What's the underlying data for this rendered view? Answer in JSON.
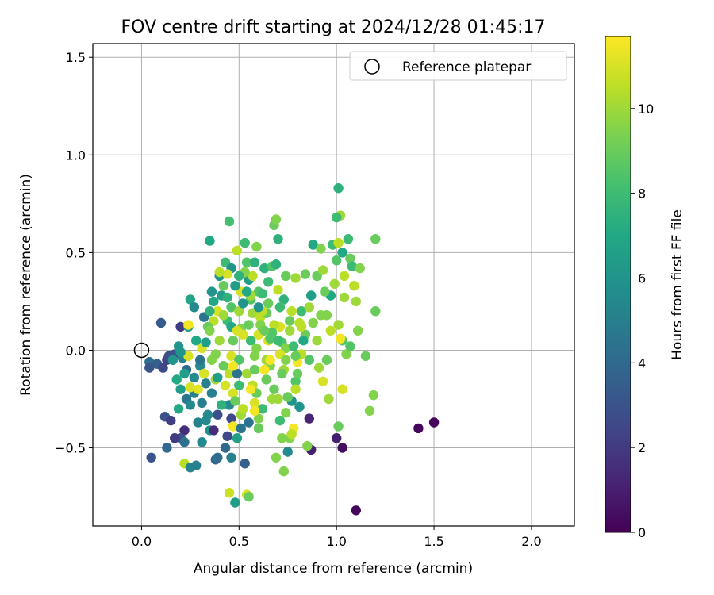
{
  "chart_data": {
    "type": "scatter",
    "title": "FOV centre drift starting at 2024/12/28 01:45:17",
    "xlabel": "Angular distance from reference (arcmin)",
    "ylabel": "Rotation from reference (arcmin)",
    "xlim": [
      -0.25,
      2.22
    ],
    "ylim": [
      -0.9,
      1.57
    ],
    "xticks": [
      0.0,
      0.5,
      1.0,
      1.5,
      2.0
    ],
    "xtick_labels": [
      "0.0",
      "0.5",
      "1.0",
      "1.5",
      "2.0"
    ],
    "yticks": [
      -0.5,
      0.0,
      0.5,
      1.0,
      1.5
    ],
    "ytick_labels": [
      "−0.5",
      "0.0",
      "0.5",
      "1.0",
      "1.5"
    ],
    "grid": true,
    "legend": {
      "position": "top-right",
      "entries": [
        {
          "label": "Reference platepar",
          "marker": "open-circle"
        }
      ]
    },
    "reference_point": {
      "x": 0.0,
      "y": 0.0
    },
    "colorbar": {
      "label": "Hours from first FF file",
      "colormap": "viridis",
      "range": [
        0,
        11.7
      ],
      "ticks": [
        0,
        2,
        4,
        6,
        8,
        10
      ],
      "tick_labels": [
        "0",
        "2",
        "4",
        "6",
        "8",
        "10"
      ]
    },
    "points": [
      [
        0.04,
        -0.06,
        4.2
      ],
      [
        0.08,
        -0.07,
        3.5
      ],
      [
        0.11,
        -0.09,
        2.5
      ],
      [
        0.13,
        -0.05,
        2.3
      ],
      [
        0.1,
        0.14,
        3.3
      ],
      [
        0.14,
        -0.03,
        2.8
      ],
      [
        0.17,
        -0.02,
        3.0
      ],
      [
        0.04,
        -0.09,
        3.1
      ],
      [
        0.19,
        0.02,
        6.0
      ],
      [
        0.21,
        -0.04,
        5.2
      ],
      [
        0.2,
        0.12,
        2.0
      ],
      [
        0.23,
        -0.1,
        4.0
      ],
      [
        0.2,
        -0.2,
        6.5
      ],
      [
        0.23,
        -0.25,
        4.5
      ],
      [
        0.19,
        -0.3,
        7.0
      ],
      [
        0.22,
        -0.41,
        1.5
      ],
      [
        0.2,
        -0.45,
        2.8
      ],
      [
        0.22,
        -0.47,
        4.3
      ],
      [
        0.12,
        -0.34,
        3.0
      ],
      [
        0.15,
        -0.36,
        2.2
      ],
      [
        0.17,
        -0.45,
        2.0
      ],
      [
        0.22,
        -0.58,
        10.5
      ],
      [
        0.25,
        -0.6,
        5.2
      ],
      [
        0.28,
        -0.59,
        5.0
      ],
      [
        0.13,
        -0.5,
        4.0
      ],
      [
        0.05,
        -0.55,
        3.0
      ],
      [
        0.25,
        -0.28,
        5.5
      ],
      [
        0.27,
        -0.22,
        5.0
      ],
      [
        0.24,
        0.12,
        6.5
      ],
      [
        0.25,
        0.26,
        6.8
      ],
      [
        0.24,
        0.13,
        11.5
      ],
      [
        0.24,
        -0.03,
        11.0
      ],
      [
        0.31,
        0.01,
        11.0
      ],
      [
        0.33,
        0.04,
        6.5
      ],
      [
        0.3,
        -0.08,
        5.5
      ],
      [
        0.29,
        -0.2,
        11.2
      ],
      [
        0.32,
        -0.12,
        11.0
      ],
      [
        0.31,
        -0.47,
        5.5
      ],
      [
        0.34,
        -0.33,
        5.5
      ],
      [
        0.35,
        -0.41,
        6.0
      ],
      [
        0.36,
        -0.22,
        5.0
      ],
      [
        0.39,
        -0.33,
        2.8
      ],
      [
        0.38,
        -0.56,
        3.8
      ],
      [
        0.39,
        -0.55,
        4.2
      ],
      [
        0.35,
        0.56,
        7.0
      ],
      [
        0.36,
        0.3,
        6.0
      ],
      [
        0.37,
        0.15,
        10.5
      ],
      [
        0.38,
        -0.02,
        9.5
      ],
      [
        0.39,
        0.2,
        11.0
      ],
      [
        0.41,
        0.28,
        6.5
      ],
      [
        0.4,
        0.38,
        6.0
      ],
      [
        0.43,
        0.45,
        8.0
      ],
      [
        0.45,
        0.66,
        8.2
      ],
      [
        0.46,
        0.42,
        6.0
      ],
      [
        0.44,
        0.39,
        11.0
      ],
      [
        0.46,
        0.22,
        8.5
      ],
      [
        0.44,
        0.15,
        8.0
      ],
      [
        0.47,
        0.05,
        9.0
      ],
      [
        0.46,
        -0.03,
        11.0
      ],
      [
        0.45,
        -0.12,
        10.5
      ],
      [
        0.47,
        -0.22,
        11.0
      ],
      [
        0.45,
        -0.28,
        5.5
      ],
      [
        0.46,
        -0.35,
        2.5
      ],
      [
        0.44,
        -0.44,
        2.5
      ],
      [
        0.47,
        -0.39,
        11.5
      ],
      [
        0.45,
        -0.73,
        10.8
      ],
      [
        0.48,
        -0.78,
        6.5
      ],
      [
        0.49,
        0.51,
        10.5
      ],
      [
        0.51,
        0.3,
        11.0
      ],
      [
        0.5,
        0.2,
        10.0
      ],
      [
        0.51,
        0.11,
        9.5
      ],
      [
        0.5,
        -0.05,
        8.5
      ],
      [
        0.49,
        -0.12,
        4.5
      ],
      [
        0.51,
        -0.33,
        10.0
      ],
      [
        0.51,
        -0.4,
        4.5
      ],
      [
        0.53,
        -0.58,
        3.5
      ],
      [
        0.54,
        -0.74,
        11.0
      ],
      [
        0.55,
        -0.75,
        9.0
      ],
      [
        0.53,
        0.55,
        8.0
      ],
      [
        0.54,
        0.45,
        8.5
      ],
      [
        0.55,
        0.36,
        6.5
      ],
      [
        0.56,
        0.26,
        8.5
      ],
      [
        0.57,
        0.19,
        10.0
      ],
      [
        0.55,
        0.13,
        9.0
      ],
      [
        0.56,
        0.05,
        8.0
      ],
      [
        0.58,
        -0.03,
        9.5
      ],
      [
        0.57,
        -0.18,
        10.5
      ],
      [
        0.58,
        -0.27,
        11.0
      ],
      [
        0.59,
        -0.22,
        9.0
      ],
      [
        0.6,
        -0.35,
        9.5
      ],
      [
        0.6,
        -0.4,
        9.0
      ],
      [
        0.59,
        0.53,
        9.5
      ],
      [
        0.6,
        0.3,
        8.5
      ],
      [
        0.61,
        0.17,
        10.5
      ],
      [
        0.62,
        0.1,
        6.5
      ],
      [
        0.63,
        0.42,
        7.5
      ],
      [
        0.64,
        0.19,
        9.0
      ],
      [
        0.65,
        0.05,
        11.0
      ],
      [
        0.66,
        -0.08,
        9.5
      ],
      [
        0.67,
        0.43,
        8.5
      ],
      [
        0.68,
        0.64,
        9.0
      ],
      [
        0.69,
        0.67,
        9.5
      ],
      [
        0.7,
        0.57,
        7.5
      ],
      [
        0.7,
        0.31,
        10.5
      ],
      [
        0.71,
        0.12,
        11.0
      ],
      [
        0.72,
        0.04,
        8.5
      ],
      [
        0.73,
        -0.1,
        10.0
      ],
      [
        0.74,
        -0.32,
        9.5
      ],
      [
        0.72,
        -0.45,
        9.5
      ],
      [
        0.75,
        -0.52,
        5.5
      ],
      [
        0.73,
        -0.62,
        9.5
      ],
      [
        0.76,
        -0.45,
        9.5
      ],
      [
        0.78,
        -0.4,
        11.5
      ],
      [
        0.77,
        -0.26,
        6.0
      ],
      [
        0.79,
        -0.16,
        8.5
      ],
      [
        0.8,
        -0.06,
        11.5
      ],
      [
        0.81,
        0.14,
        10.5
      ],
      [
        0.82,
        0.2,
        8.0
      ],
      [
        0.84,
        0.39,
        9.0
      ],
      [
        0.86,
        0.22,
        10.0
      ],
      [
        0.87,
        0.28,
        6.5
      ],
      [
        0.88,
        0.54,
        7.0
      ],
      [
        0.9,
        0.38,
        9.0
      ],
      [
        0.92,
        0.52,
        9.5
      ],
      [
        0.93,
        0.41,
        10.0
      ],
      [
        0.92,
        0.18,
        9.5
      ],
      [
        0.95,
        0.18,
        9.5
      ],
      [
        0.97,
        0.28,
        7.0
      ],
      [
        0.98,
        0.54,
        8.0
      ],
      [
        1.0,
        0.46,
        8.5
      ],
      [
        1.01,
        0.55,
        10.5
      ],
      [
        1.02,
        0.69,
        10.0
      ],
      [
        1.01,
        0.83,
        7.5
      ],
      [
        1.0,
        0.68,
        8.0
      ],
      [
        1.03,
        0.5,
        7.0
      ],
      [
        1.06,
        0.57,
        8.0
      ],
      [
        1.07,
        0.47,
        9.0
      ],
      [
        1.08,
        0.43,
        8.0
      ],
      [
        1.09,
        0.33,
        10.5
      ],
      [
        1.1,
        0.25,
        10.0
      ],
      [
        1.12,
        0.42,
        9.5
      ],
      [
        1.04,
        0.27,
        10.0
      ],
      [
        1.01,
        0.13,
        10.0
      ],
      [
        1.03,
        0.05,
        8.5
      ],
      [
        1.05,
        -0.02,
        9.5
      ],
      [
        1.07,
        0.02,
        8.5
      ],
      [
        1.11,
        0.1,
        9.5
      ],
      [
        1.15,
        -0.03,
        9.0
      ],
      [
        1.17,
        -0.31,
        9.5
      ],
      [
        1.19,
        -0.23,
        9.5
      ],
      [
        1.2,
        0.2,
        9.0
      ],
      [
        1.2,
        0.57,
        9.0
      ],
      [
        0.96,
        -0.25,
        10.0
      ],
      [
        0.95,
        -0.05,
        9.0
      ],
      [
        0.93,
        -0.16,
        11.0
      ],
      [
        0.91,
        -0.09,
        10.0
      ],
      [
        1.03,
        -0.2,
        11.0
      ],
      [
        1.01,
        -0.39,
        9.0
      ],
      [
        1.0,
        -0.45,
        1.0
      ],
      [
        1.03,
        -0.5,
        0.5
      ],
      [
        1.1,
        -0.82,
        0.2
      ],
      [
        0.86,
        -0.35,
        1.2
      ],
      [
        0.87,
        -0.51,
        1.0
      ],
      [
        0.85,
        -0.49,
        9.5
      ],
      [
        1.42,
        -0.4,
        0.2
      ],
      [
        1.5,
        -0.37,
        0.2
      ],
      [
        0.6,
        0.08,
        11.0
      ],
      [
        0.62,
        0.2,
        10.5
      ],
      [
        0.64,
        -0.05,
        10.0
      ],
      [
        0.66,
        0.06,
        8.5
      ],
      [
        0.68,
        -0.2,
        9.0
      ],
      [
        0.7,
        -0.25,
        10.0
      ],
      [
        0.72,
        -0.12,
        9.0
      ],
      [
        0.74,
        0.01,
        9.5
      ],
      [
        0.76,
        0.1,
        10.0
      ],
      [
        0.78,
        0.02,
        8.0
      ],
      [
        0.8,
        -0.12,
        9.0
      ],
      [
        0.82,
        -0.02,
        10.5
      ],
      [
        0.84,
        0.08,
        9.0
      ],
      [
        0.52,
        0.08,
        11.0
      ],
      [
        0.54,
        -0.12,
        10.0
      ],
      [
        0.56,
        -0.2,
        11.5
      ],
      [
        0.58,
        -0.1,
        9.0
      ],
      [
        0.4,
        0.05,
        10.0
      ],
      [
        0.42,
        -0.08,
        9.0
      ],
      [
        0.38,
        -0.15,
        10.0
      ],
      [
        0.36,
        -0.05,
        9.5
      ],
      [
        0.34,
        0.12,
        9.0
      ],
      [
        0.44,
        0.27,
        7.5
      ],
      [
        0.48,
        0.33,
        6.5
      ],
      [
        0.52,
        0.24,
        6.0
      ],
      [
        0.31,
        -0.27,
        5.0
      ],
      [
        0.29,
        -0.37,
        5.2
      ],
      [
        0.27,
        0.22,
        5.5
      ],
      [
        0.35,
        0.1,
        9.5
      ],
      [
        0.37,
        0.25,
        7.0
      ],
      [
        0.42,
        0.18,
        10.0
      ],
      [
        0.46,
        0.12,
        7.0
      ],
      [
        0.5,
        -0.18,
        8.0
      ],
      [
        0.48,
        -0.26,
        9.0
      ],
      [
        0.62,
        -0.3,
        8.0
      ],
      [
        0.64,
        -0.15,
        9.0
      ],
      [
        0.66,
        -0.05,
        11.5
      ],
      [
        0.68,
        0.13,
        10.5
      ],
      [
        0.7,
        0.05,
        8.0
      ],
      [
        0.57,
        0.38,
        10.5
      ],
      [
        0.61,
        0.13,
        9.5
      ],
      [
        0.65,
        0.35,
        8.0
      ],
      [
        0.73,
        0.26,
        7.5
      ],
      [
        0.77,
        0.2,
        10.5
      ],
      [
        0.79,
        0.37,
        10.0
      ],
      [
        0.83,
        0.05,
        7.0
      ],
      [
        0.86,
        -0.05,
        8.5
      ],
      [
        0.88,
        0.14,
        9.5
      ],
      [
        0.9,
        0.05,
        10.0
      ],
      [
        0.94,
        0.3,
        9.0
      ],
      [
        0.97,
        0.1,
        10.5
      ],
      [
        0.99,
        0.34,
        10.0
      ],
      [
        1.04,
        0.38,
        10.5
      ],
      [
        1.02,
        0.06,
        11.5
      ],
      [
        0.58,
        0.45,
        7.5
      ],
      [
        0.53,
        0.4,
        9.5
      ],
      [
        0.56,
        0.28,
        10.0
      ],
      [
        0.49,
        0.1,
        11.0
      ],
      [
        0.47,
        -0.08,
        11.5
      ],
      [
        0.43,
        -0.18,
        11.0
      ],
      [
        0.41,
        -0.28,
        7.5
      ],
      [
        0.39,
        -0.14,
        6.5
      ],
      [
        0.33,
        -0.17,
        5.0
      ],
      [
        0.3,
        -0.05,
        4.5
      ],
      [
        0.27,
        -0.14,
        5.5
      ],
      [
        0.25,
        -0.19,
        11.0
      ],
      [
        0.22,
        -0.12,
        6.5
      ],
      [
        0.18,
        -0.15,
        7.0
      ],
      [
        0.16,
        -0.05,
        6.0
      ],
      [
        0.2,
        -0.01,
        6.0
      ],
      [
        0.28,
        0.05,
        7.0
      ],
      [
        0.32,
        0.17,
        4.5
      ],
      [
        0.35,
        0.2,
        7.5
      ],
      [
        0.33,
        -0.36,
        5.5
      ],
      [
        0.37,
        -0.41,
        1.5
      ],
      [
        0.43,
        -0.5,
        4.0
      ],
      [
        0.46,
        -0.55,
        5.0
      ],
      [
        0.49,
        -0.45,
        6.5
      ],
      [
        0.52,
        -0.3,
        10.5
      ],
      [
        0.55,
        -0.37,
        4.5
      ],
      [
        0.58,
        -0.31,
        11.5
      ],
      [
        0.63,
        -0.1,
        11.5
      ],
      [
        0.67,
        -0.25,
        10.0
      ],
      [
        0.69,
        -0.55,
        9.5
      ],
      [
        0.71,
        -0.36,
        8.0
      ],
      [
        0.75,
        -0.24,
        9.0
      ],
      [
        0.77,
        -0.43,
        10.5
      ],
      [
        0.79,
        -0.2,
        10.5
      ],
      [
        0.81,
        -0.29,
        6.0
      ],
      [
        0.4,
        0.4,
        10.5
      ],
      [
        0.42,
        0.33,
        9.0
      ],
      [
        0.5,
        0.38,
        7.5
      ],
      [
        0.54,
        0.3,
        7.0
      ],
      [
        0.6,
        0.22,
        6.0
      ],
      [
        0.62,
        0.29,
        8.0
      ],
      [
        0.71,
        0.22,
        8.0
      ],
      [
        0.74,
        0.38,
        9.0
      ],
      [
        0.76,
        0.15,
        9.0
      ],
      [
        0.69,
        0.44,
        7.5
      ],
      [
        0.65,
        0.24,
        9.0
      ],
      [
        0.67,
        0.09,
        8.5
      ],
      [
        0.59,
        0.01,
        9.5
      ],
      [
        0.63,
        0.1,
        9.0
      ],
      [
        0.71,
        -0.02,
        11.0
      ],
      [
        0.74,
        -0.05,
        9.5
      ],
      [
        0.79,
        -0.03,
        9.0
      ],
      [
        0.82,
        0.12,
        10.5
      ]
    ]
  }
}
